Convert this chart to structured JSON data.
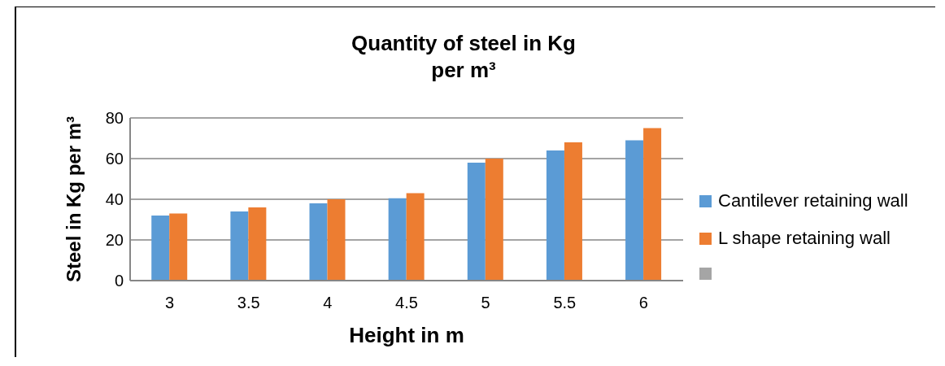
{
  "chart_data": {
    "type": "bar",
    "title": "Quantity of steel in Kg\nper m³",
    "xlabel": "Height in m",
    "ylabel": "Steel in Kg per m³",
    "categories": [
      "3",
      "3.5",
      "4",
      "4.5",
      "5",
      "5.5",
      "6"
    ],
    "series": [
      {
        "name": "Cantilever retaining wall",
        "color": "#5b9bd5",
        "values": [
          32,
          34,
          38,
          40.5,
          58,
          64,
          69
        ]
      },
      {
        "name": "L shape retaining wall",
        "color": "#ed7d31",
        "values": [
          33,
          36,
          40,
          43,
          60,
          68,
          75
        ]
      }
    ],
    "ylim": [
      0,
      80
    ],
    "yticks": [
      0,
      20,
      40,
      60,
      80
    ],
    "grid": "y",
    "legend": "right"
  }
}
